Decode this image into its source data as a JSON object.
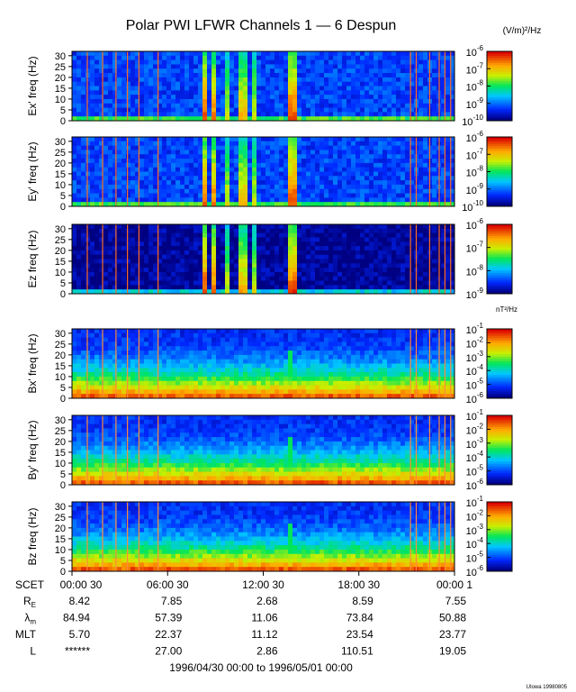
{
  "header": {
    "title": "Polar PWI LFWR Channels 1 — 6 Despun",
    "e_units": "(V/m)²/Hz",
    "b_units": "nT²/Hz"
  },
  "chart_data": {
    "type": "heatmap",
    "title": "Polar PWI LFWR Channels 1 — 6 Despun",
    "x_ticks": [
      "00:00 30",
      "06:00 30",
      "12:00 30",
      "18:00 30",
      "00:00 1"
    ],
    "y_ticks": [
      "0",
      "5",
      "10",
      "15",
      "20",
      "25",
      "30"
    ],
    "ylim": [
      0,
      32
    ],
    "panels": [
      {
        "ylabel": "Ex' freq (Hz)",
        "field": "E",
        "colorbar": {
          "ticks": [
            "10",
            "10",
            "10",
            "10",
            "10"
          ],
          "exps": [
            "-6",
            "-7",
            "-8",
            "-9",
            "-10"
          ],
          "range": [
            -10,
            -6
          ]
        }
      },
      {
        "ylabel": "Ey' freq (Hz)",
        "field": "E",
        "colorbar": {
          "ticks": [
            "10",
            "10",
            "10",
            "10",
            "10"
          ],
          "exps": [
            "-6",
            "-7",
            "-8",
            "-9",
            "-10"
          ],
          "range": [
            -10,
            -6
          ]
        }
      },
      {
        "ylabel": "Ez freq (Hz)",
        "field": "E",
        "colorbar": {
          "ticks": [
            "10",
            "10",
            "10",
            "10"
          ],
          "exps": [
            "-6",
            "-7",
            "-8",
            "-9"
          ],
          "range": [
            -9,
            -6
          ]
        }
      },
      {
        "ylabel": "Bx' freq (Hz)",
        "field": "B",
        "colorbar": {
          "ticks": [
            "10",
            "10",
            "10",
            "10",
            "10",
            "10"
          ],
          "exps": [
            "-1",
            "-2",
            "-3",
            "-4",
            "-5",
            "-6"
          ],
          "range": [
            -6,
            -1
          ]
        }
      },
      {
        "ylabel": "By' freq (Hz)",
        "field": "B",
        "colorbar": {
          "ticks": [
            "10",
            "10",
            "10",
            "10",
            "10",
            "10"
          ],
          "exps": [
            "-1",
            "-2",
            "-3",
            "-4",
            "-5",
            "-6"
          ],
          "range": [
            -6,
            -1
          ]
        }
      },
      {
        "ylabel": "Bz freq (Hz)",
        "field": "B",
        "colorbar": {
          "ticks": [
            "10",
            "10",
            "10",
            "10",
            "10",
            "10"
          ],
          "exps": [
            "-1",
            "-2",
            "-3",
            "-4",
            "-5",
            "-6"
          ],
          "range": [
            -6,
            -1
          ]
        }
      }
    ],
    "ephemeris": {
      "scet_label": "SCET",
      "rows": [
        {
          "label": "R",
          "sub": "E",
          "values": [
            "8.42",
            "7.85",
            "2.68",
            "8.59",
            "7.55"
          ]
        },
        {
          "label": "λ",
          "sub": "m",
          "values": [
            "84.94",
            "57.39",
            "11.06",
            "73.84",
            "50.88"
          ]
        },
        {
          "label": "MLT",
          "sub": "",
          "values": [
            "5.70",
            "22.37",
            "11.12",
            "23.54",
            "23.77"
          ]
        },
        {
          "label": "L",
          "sub": "",
          "values": [
            "******",
            "27.00",
            "2.86",
            "110.51",
            "19.05"
          ]
        }
      ]
    },
    "date_range": "1996/04/30 00:00 to 1996/05/01 00:00",
    "credit": "UIowa 19980805"
  }
}
